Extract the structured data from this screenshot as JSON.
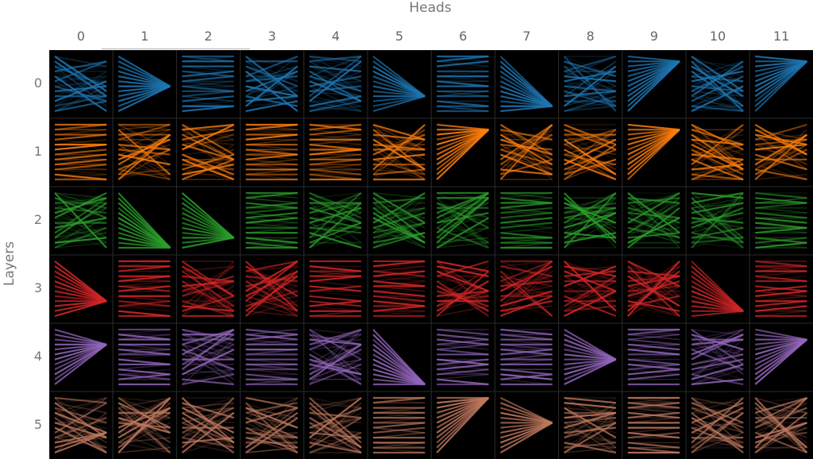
{
  "x_title": "Heads",
  "y_title": "Layers",
  "heads": [
    "0",
    "1",
    "2",
    "3",
    "4",
    "5",
    "6",
    "7",
    "8",
    "9",
    "10",
    "11"
  ],
  "layers": [
    "0",
    "1",
    "2",
    "3",
    "4",
    "5"
  ],
  "layer_colors": [
    "#1f77b4",
    "#ff7f0e",
    "#2ca02c",
    "#d62728",
    "#9467bd",
    "#c27a60"
  ],
  "background": "#000000"
}
